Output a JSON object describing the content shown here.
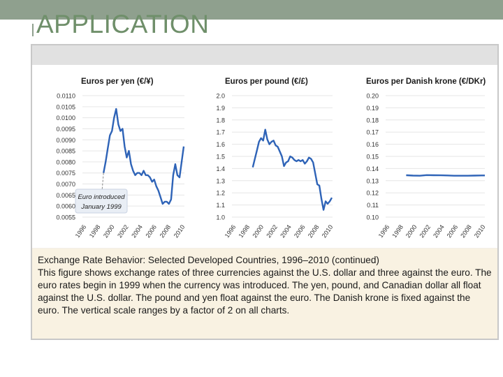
{
  "slide": {
    "title": "APPLICATION",
    "caption_title": "Exchange Rate Behavior: Selected Developed Countries, 1996–2010 (continued)",
    "caption_body": "This figure shows exchange rates of three currencies against the U.S. dollar and three against the euro. The euro rates begin in 1999 when the currency was introduced. The yen, pound, and Canadian dollar all float against the U.S. dollar. The pound and yen float against the euro. The Danish krone is fixed against the euro. The vertical scale ranges by a factor of 2 on all charts."
  },
  "colors": {
    "accent": "#8fa08e",
    "title_text": "#6f8f6a",
    "line": "#2e63b7",
    "caption_bg": "#f9f2e2"
  },
  "chart_data": [
    {
      "type": "line",
      "title": "Euros per yen (€/¥)",
      "x_tick_labels": [
        "1996",
        "1998",
        "2000",
        "2002",
        "2004",
        "2006",
        "2008",
        "2010"
      ],
      "y_tick_labels": [
        "0.0055",
        "0.0060",
        "0.0065",
        "0.0070",
        "0.0075",
        "0.0080",
        "0.0085",
        "0.0090",
        "0.0095",
        "0.0100",
        "0.0105",
        "0.0110"
      ],
      "ylim": [
        0.0055,
        0.011
      ],
      "xlim": [
        1996,
        2010.5
      ],
      "annotation": {
        "line1": "Euro introduced",
        "line2": "January 1999"
      },
      "series": [
        {
          "x": [
            1999.0,
            1999.3,
            1999.6,
            1999.9,
            2000.2,
            2000.5,
            2000.8,
            2001.1,
            2001.4,
            2001.7,
            2002.0,
            2002.3,
            2002.6,
            2002.9,
            2003.2,
            2003.5,
            2003.8,
            2004.1,
            2004.4,
            2004.7,
            2005.0,
            2005.3,
            2005.6,
            2005.9,
            2006.2,
            2006.5,
            2006.8,
            2007.1,
            2007.4,
            2007.7,
            2008.0,
            2008.3,
            2008.6,
            2008.9,
            2009.2,
            2009.5,
            2009.8,
            2010.1,
            2010.4
          ],
          "y": [
            0.0075,
            0.008,
            0.0086,
            0.0092,
            0.0094,
            0.01,
            0.0104,
            0.0097,
            0.0094,
            0.0095,
            0.0087,
            0.0082,
            0.0085,
            0.0079,
            0.0076,
            0.0074,
            0.0075,
            0.0075,
            0.0074,
            0.0076,
            0.0074,
            0.0074,
            0.0073,
            0.0071,
            0.0072,
            0.0069,
            0.0067,
            0.0064,
            0.0061,
            0.0062,
            0.0062,
            0.0061,
            0.0063,
            0.0074,
            0.0079,
            0.0074,
            0.0073,
            0.008,
            0.0087
          ]
        }
      ]
    },
    {
      "type": "line",
      "title": "Euros per pound (€/£)",
      "x_tick_labels": [
        "1996",
        "1998",
        "2000",
        "2002",
        "2004",
        "2006",
        "2008",
        "2010"
      ],
      "y_tick_labels": [
        "1.0",
        "1.1",
        "1.2",
        "1.3",
        "1.4",
        "1.5",
        "1.6",
        "1.7",
        "1.8",
        "1.9",
        "2.0"
      ],
      "ylim": [
        1.0,
        2.0
      ],
      "xlim": [
        1996,
        2010.5
      ],
      "series": [
        {
          "x": [
            1999.0,
            1999.3,
            1999.6,
            1999.9,
            2000.2,
            2000.5,
            2000.8,
            2001.1,
            2001.4,
            2001.7,
            2002.0,
            2002.3,
            2002.6,
            2002.9,
            2003.2,
            2003.5,
            2003.8,
            2004.1,
            2004.4,
            2004.7,
            2005.0,
            2005.3,
            2005.6,
            2005.9,
            2006.2,
            2006.5,
            2006.8,
            2007.1,
            2007.4,
            2007.7,
            2008.0,
            2008.3,
            2008.6,
            2008.9,
            2009.2,
            2009.5,
            2009.8,
            2010.1,
            2010.4
          ],
          "y": [
            1.41,
            1.48,
            1.55,
            1.62,
            1.65,
            1.63,
            1.72,
            1.64,
            1.6,
            1.62,
            1.63,
            1.59,
            1.58,
            1.54,
            1.5,
            1.42,
            1.45,
            1.46,
            1.5,
            1.49,
            1.47,
            1.46,
            1.47,
            1.46,
            1.47,
            1.44,
            1.46,
            1.49,
            1.48,
            1.45,
            1.36,
            1.27,
            1.26,
            1.15,
            1.06,
            1.13,
            1.11,
            1.13,
            1.16
          ]
        }
      ]
    },
    {
      "type": "line",
      "title": "Euros per Danish krone (€/DKr)",
      "x_tick_labels": [
        "1996",
        "1998",
        "2000",
        "2002",
        "2004",
        "2006",
        "2008",
        "2010"
      ],
      "y_tick_labels": [
        "0.10",
        "0.11",
        "0.12",
        "0.13",
        "0.14",
        "0.15",
        "0.16",
        "0.17",
        "0.18",
        "0.19",
        "0.20"
      ],
      "ylim": [
        0.1,
        0.2
      ],
      "xlim": [
        1996,
        2010.5
      ],
      "series": [
        {
          "x": [
            1999.0,
            2000.0,
            2001.0,
            2002.0,
            2003.0,
            2004.0,
            2005.0,
            2006.0,
            2007.0,
            2008.0,
            2009.0,
            2010.0,
            2010.5
          ],
          "y": [
            0.1345,
            0.1342,
            0.1341,
            0.1346,
            0.1345,
            0.1344,
            0.1343,
            0.1341,
            0.1341,
            0.1341,
            0.1342,
            0.1343,
            0.1343
          ]
        }
      ]
    }
  ]
}
